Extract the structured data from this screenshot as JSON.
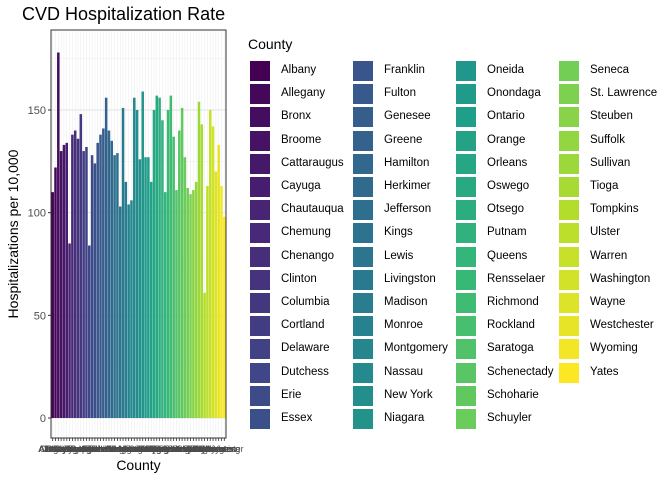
{
  "chart_data": {
    "type": "bar",
    "title": "CVD Hospitalization Rate",
    "xlabel": "County",
    "ylabel": "Hospitalizations per 10,000",
    "ylim": [
      0,
      185
    ],
    "yticks": [
      0,
      50,
      100,
      150
    ],
    "grid": true,
    "legend": {
      "title": "County",
      "placement": "right",
      "columns": 4
    },
    "palette": "viridis",
    "categories": [
      "Albany",
      "Allegany",
      "Bronx",
      "Broome",
      "Cattaraugus",
      "Cayuga",
      "Chautauqua",
      "Chemung",
      "Chenango",
      "Clinton",
      "Columbia",
      "Cortland",
      "Delaware",
      "Dutchess",
      "Erie",
      "Essex",
      "Franklin",
      "Fulton",
      "Genesee",
      "Greene",
      "Hamilton",
      "Herkimer",
      "Jefferson",
      "Kings",
      "Lewis",
      "Livingston",
      "Madison",
      "Monroe",
      "Montgomery",
      "Nassau",
      "New York",
      "Niagara",
      "Oneida",
      "Onondaga",
      "Ontario",
      "Orange",
      "Orleans",
      "Oswego",
      "Otsego",
      "Putnam",
      "Queens",
      "Rensselaer",
      "Richmond",
      "Rockland",
      "Saratoga",
      "Schenectady",
      "Schoharie",
      "Schuyler",
      "Seneca",
      "St. Lawrence",
      "Steuben",
      "Suffolk",
      "Sullivan",
      "Tioga",
      "Tompkins",
      "Ulster",
      "Warren",
      "Washington",
      "Wayne",
      "Westchester",
      "Wyoming",
      "Yates"
    ],
    "values": [
      110,
      122,
      178,
      130,
      133,
      134,
      85,
      138,
      140,
      136,
      148,
      130,
      132,
      84,
      128,
      124,
      134,
      138,
      141,
      156,
      140,
      135,
      128,
      129,
      103,
      151,
      115,
      104,
      106,
      156,
      150,
      126,
      159,
      127,
      127,
      115,
      150,
      157,
      156,
      145,
      110,
      150,
      157,
      137,
      111,
      140,
      151,
      127,
      112,
      109,
      111,
      115,
      154,
      143,
      61,
      113,
      150,
      142,
      120,
      133,
      113,
      98
    ]
  }
}
